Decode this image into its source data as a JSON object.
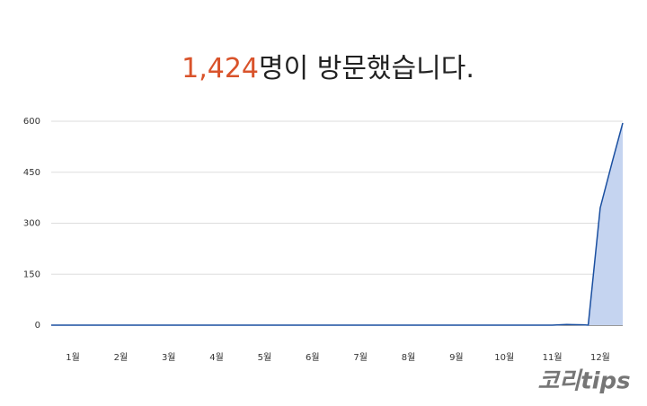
{
  "chart_data": {
    "type": "area",
    "title_count": "1,424",
    "title": "명이 방문했습니다.",
    "x": [
      0.55,
      11.0,
      11.3,
      11.65,
      11.75,
      12.0,
      12.25,
      12.47
    ],
    "series": [
      {
        "color": "#1a4fa0",
        "fill": "#c5d4f0",
        "values": [
          0,
          0,
          2,
          1,
          0,
          345,
          480,
          595
        ]
      }
    ],
    "xlim": [
      0.55,
      12.47
    ],
    "xticks": [
      {
        "value": 1,
        "label": "1월"
      },
      {
        "value": 2,
        "label": "2월"
      },
      {
        "value": 3,
        "label": "3월"
      },
      {
        "value": 4,
        "label": "4월"
      },
      {
        "value": 5,
        "label": "5월"
      },
      {
        "value": 6,
        "label": "6월"
      },
      {
        "value": 7,
        "label": "7월"
      },
      {
        "value": 8,
        "label": "8월"
      },
      {
        "value": 9,
        "label": "9월"
      },
      {
        "value": 10,
        "label": "10월"
      },
      {
        "value": 11,
        "label": "11월"
      },
      {
        "value": 12,
        "label": "12월"
      }
    ],
    "ylim": [
      0,
      600
    ],
    "yticks": [
      0,
      150,
      300,
      450,
      600
    ],
    "grid": true,
    "watermark": "코리tips"
  }
}
